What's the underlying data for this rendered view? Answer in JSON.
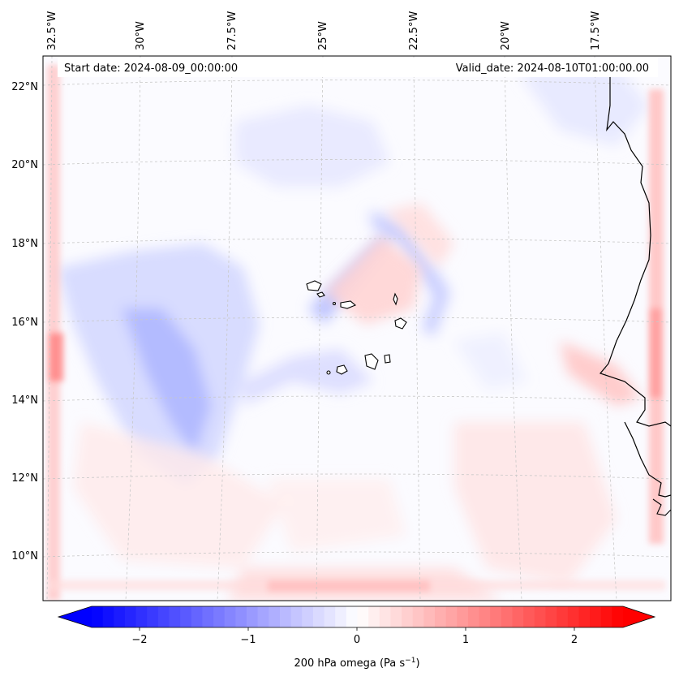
{
  "header": {
    "start_date": "Start date: 2024-08-09_00:00:00",
    "valid_date": "Valid_date: 2024-08-10T01:00:00.00"
  },
  "axes": {
    "lon_labels": [
      "32.5°W",
      "30°W",
      "27.5°W",
      "25°W",
      "22.5°W",
      "20°W",
      "17.5°W"
    ],
    "lat_labels": [
      "22°N",
      "20°N",
      "18°N",
      "16°N",
      "14°N",
      "12°N",
      "10°N"
    ]
  },
  "colorbar": {
    "ticks": [
      "−2",
      "−1",
      "0",
      "1",
      "2"
    ],
    "min": -2.6,
    "max": 2.6,
    "label_prefix": "200 hPa omega (Pa s",
    "label_exp": "−1",
    "label_suffix": ")"
  },
  "colors": {
    "negative": "#0000ff",
    "neutral": "#ffffff",
    "positive": "#ff0000",
    "coastline": "#000000",
    "gridline": "#c8c8c8"
  }
}
